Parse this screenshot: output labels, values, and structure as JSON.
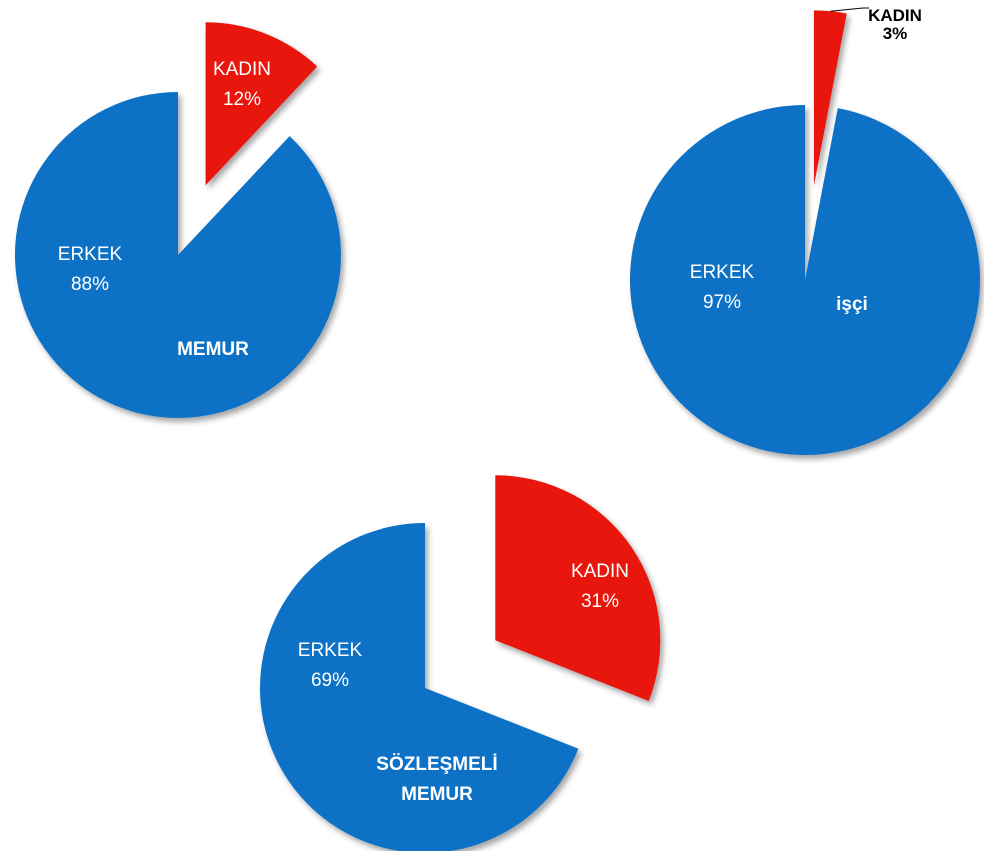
{
  "chart_data": [
    {
      "type": "pie",
      "title": "MEMUR",
      "categories": [
        "KADIN",
        "ERKEK"
      ],
      "values": [
        12,
        88
      ],
      "value_labels": [
        "12%",
        "88%"
      ],
      "colors": [
        "#e8150f",
        "#0b72c6"
      ]
    },
    {
      "type": "pie",
      "title": "işçi",
      "categories": [
        "KADIN",
        "ERKEK"
      ],
      "values": [
        3,
        97
      ],
      "value_labels": [
        "3%",
        "97%"
      ],
      "colors": [
        "#e8150f",
        "#0b72c6"
      ]
    },
    {
      "type": "pie",
      "title": "SÖZLEŞMELİ MEMUR",
      "categories": [
        "KADIN",
        "ERKEK"
      ],
      "values": [
        31,
        69
      ],
      "value_labels": [
        "31%",
        "69%"
      ],
      "colors": [
        "#e8150f",
        "#0b72c6"
      ]
    }
  ]
}
